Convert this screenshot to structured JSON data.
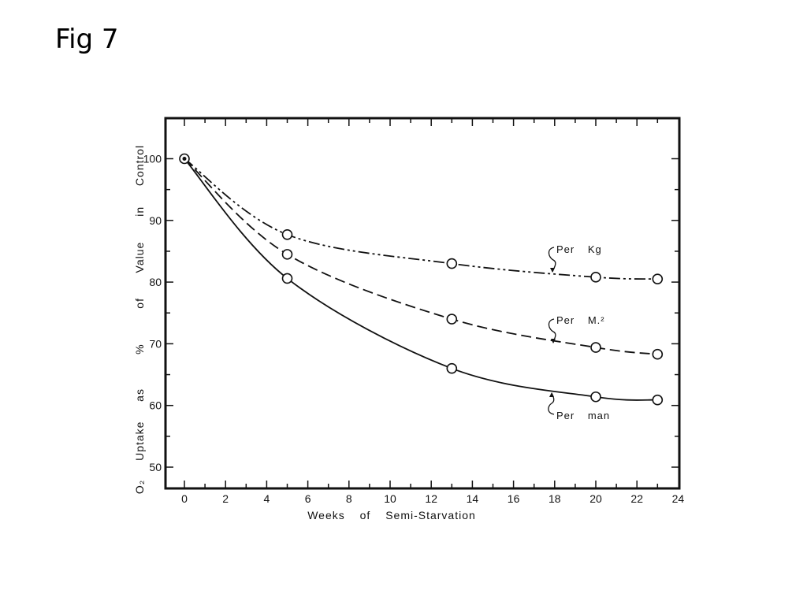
{
  "slide": {
    "title": "Fig 7"
  },
  "chart_data": {
    "type": "line",
    "title": "",
    "xlabel": "Weeks of Semi-Starvation",
    "ylabel": "O2 Uptake as % of Value in Control",
    "ylabel_words": [
      "O₂",
      "Uptake",
      "as",
      "%",
      "of",
      "Value",
      "in",
      "Control"
    ],
    "xlim": [
      -1,
      24
    ],
    "ylim": [
      47,
      107
    ],
    "xticks": [
      0,
      2,
      4,
      6,
      8,
      10,
      12,
      14,
      16,
      18,
      20,
      22,
      24
    ],
    "yticks": [
      50,
      60,
      70,
      80,
      90,
      100
    ],
    "grid": false,
    "series": [
      {
        "name": "Per Kg",
        "label_words": [
          "Per",
          "Kg"
        ],
        "style": "dash-dot-dot",
        "x": [
          0,
          5,
          13,
          20,
          23
        ],
        "y": [
          100,
          87.7,
          83.0,
          80.8,
          80.5
        ]
      },
      {
        "name": "Per M.²",
        "label_words": [
          "Per",
          "M.²"
        ],
        "style": "dashed",
        "x": [
          0,
          5,
          13,
          20,
          23
        ],
        "y": [
          100,
          84.5,
          74.0,
          69.4,
          68.3
        ]
      },
      {
        "name": "Per man",
        "label_words": [
          "Per",
          "man"
        ],
        "style": "solid",
        "x": [
          0,
          5,
          13,
          20,
          23
        ],
        "y": [
          100,
          80.6,
          66.0,
          61.4,
          60.9
        ]
      }
    ]
  }
}
